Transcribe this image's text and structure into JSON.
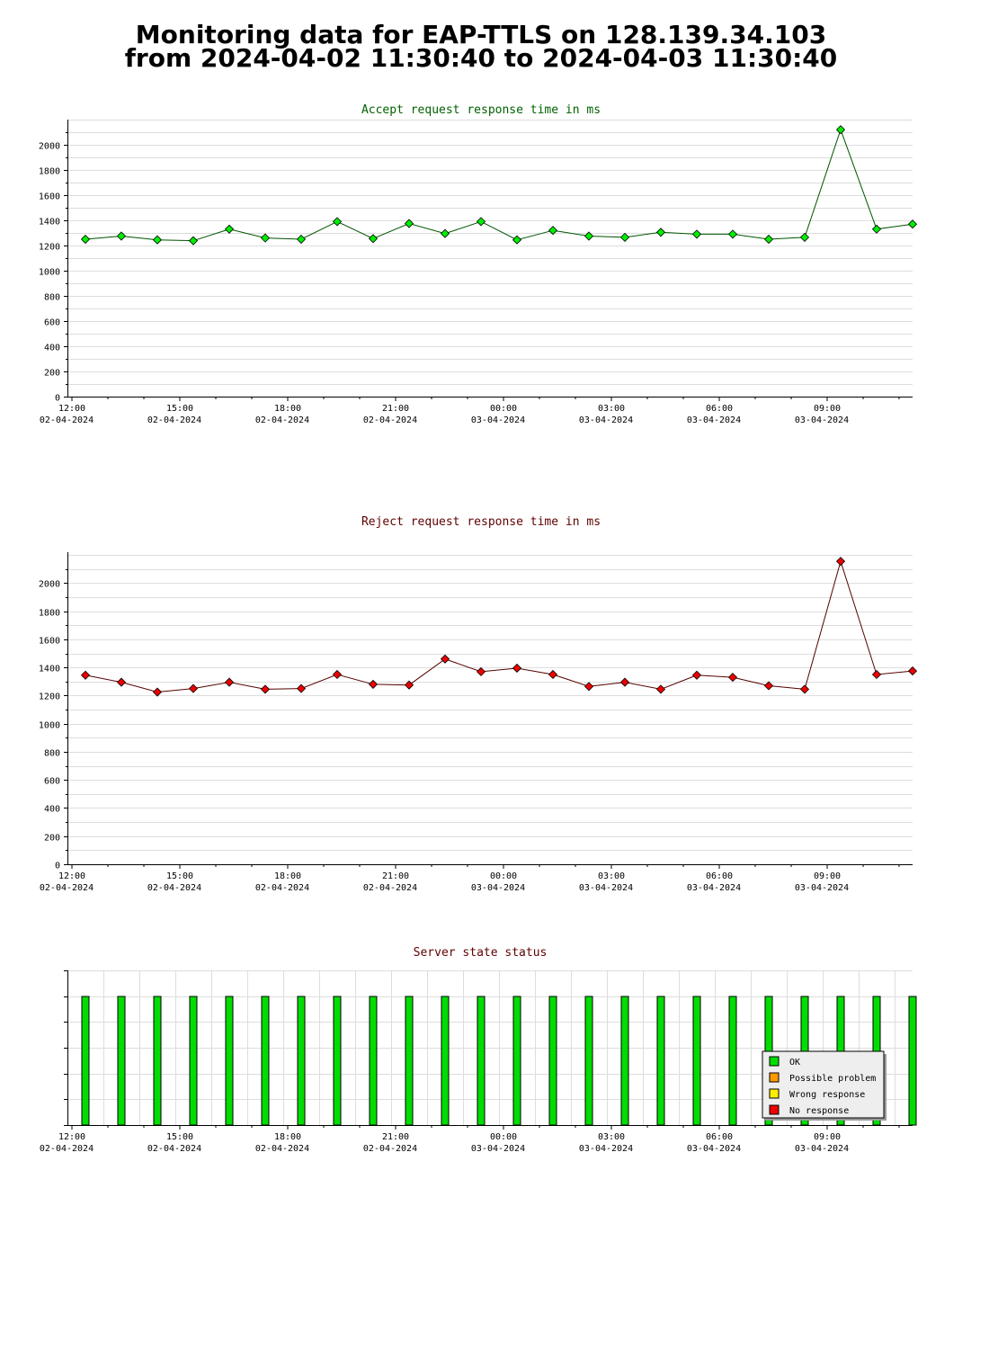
{
  "page_title": {
    "line1": "Monitoring data for EAP-TTLS on 128.139.34.103",
    "line2": "from 2024-04-02 11:30:40 to 2024-04-03 11:30:40"
  },
  "colors": {
    "accept_title": "#006000",
    "reject_title": "#600000",
    "status_title": "#600000",
    "accept_line": "#005500",
    "reject_line": "#550000",
    "accept_marker": "#00ee00",
    "reject_marker": "#ee0000",
    "ok": "#00dd00",
    "possible_problem": "#ff9900",
    "wrong_response": "#ffee00",
    "no_response": "#ee0000",
    "grid": "#dddddd"
  },
  "chart_data": [
    {
      "id": "accept",
      "type": "line",
      "title": "Accept request response time in ms",
      "x": [
        "12:15",
        "13:15",
        "14:15",
        "15:15",
        "16:15",
        "17:15",
        "18:15",
        "19:15",
        "20:15",
        "21:15",
        "22:15",
        "23:15",
        "00:15",
        "01:15",
        "02:15",
        "03:15",
        "04:15",
        "05:15",
        "06:15",
        "07:15",
        "08:15",
        "09:15",
        "10:15",
        "11:15"
      ],
      "values": [
        1250,
        1275,
        1245,
        1238,
        1330,
        1260,
        1250,
        1390,
        1255,
        1375,
        1295,
        1390,
        1245,
        1320,
        1275,
        1265,
        1305,
        1290,
        1290,
        1250,
        1265,
        2120,
        1330,
        1370
      ],
      "ylim": [
        0,
        2200
      ],
      "yticks": [
        "0",
        "200",
        "400",
        "600",
        "800",
        "1000",
        "1200",
        "1400",
        "1600",
        "1800",
        "2000"
      ],
      "xticks": [
        {
          "time": "12:00",
          "date": "02-04-2024"
        },
        {
          "time": "15:00",
          "date": "02-04-2024"
        },
        {
          "time": "18:00",
          "date": "02-04-2024"
        },
        {
          "time": "21:00",
          "date": "02-04-2024"
        },
        {
          "time": "00:00",
          "date": "03-04-2024"
        },
        {
          "time": "03:00",
          "date": "03-04-2024"
        },
        {
          "time": "06:00",
          "date": "03-04-2024"
        },
        {
          "time": "09:00",
          "date": "03-04-2024"
        }
      ],
      "grid": true
    },
    {
      "id": "reject",
      "type": "line",
      "title": "Reject request response time in ms",
      "x": [
        "12:15",
        "13:15",
        "14:15",
        "15:15",
        "16:15",
        "17:15",
        "18:15",
        "19:15",
        "20:15",
        "21:15",
        "22:15",
        "23:15",
        "00:15",
        "01:15",
        "02:15",
        "03:15",
        "04:15",
        "05:15",
        "06:15",
        "07:15",
        "08:15",
        "09:15",
        "10:15",
        "11:15"
      ],
      "values": [
        1345,
        1295,
        1225,
        1250,
        1295,
        1245,
        1250,
        1350,
        1280,
        1275,
        1460,
        1370,
        1395,
        1350,
        1265,
        1295,
        1245,
        1345,
        1330,
        1270,
        1245,
        2155,
        1350,
        1375
      ],
      "ylim": [
        0,
        2220
      ],
      "yticks": [
        "0",
        "200",
        "400",
        "600",
        "800",
        "1000",
        "1200",
        "1400",
        "1600",
        "1800",
        "2000"
      ],
      "xticks": [
        {
          "time": "12:00",
          "date": "02-04-2024"
        },
        {
          "time": "15:00",
          "date": "02-04-2024"
        },
        {
          "time": "18:00",
          "date": "02-04-2024"
        },
        {
          "time": "21:00",
          "date": "02-04-2024"
        },
        {
          "time": "00:00",
          "date": "03-04-2024"
        },
        {
          "time": "03:00",
          "date": "03-04-2024"
        },
        {
          "time": "06:00",
          "date": "03-04-2024"
        },
        {
          "time": "09:00",
          "date": "03-04-2024"
        }
      ],
      "grid": true
    },
    {
      "id": "status",
      "type": "bar",
      "title": "Server state status",
      "x": [
        "12:15",
        "13:15",
        "14:15",
        "15:15",
        "16:15",
        "17:15",
        "18:15",
        "19:15",
        "20:15",
        "21:15",
        "22:15",
        "23:15",
        "00:15",
        "01:15",
        "02:15",
        "03:15",
        "04:15",
        "05:15",
        "06:15",
        "07:15",
        "08:15",
        "09:15",
        "10:15",
        "11:15"
      ],
      "states": [
        "OK",
        "OK",
        "OK",
        "OK",
        "OK",
        "OK",
        "OK",
        "OK",
        "OK",
        "OK",
        "OK",
        "OK",
        "OK",
        "OK",
        "OK",
        "OK",
        "OK",
        "OK",
        "OK",
        "OK",
        "OK",
        "OK",
        "OK",
        "OK"
      ],
      "xticks": [
        {
          "time": "12:00",
          "date": "02-04-2024"
        },
        {
          "time": "15:00",
          "date": "02-04-2024"
        },
        {
          "time": "18:00",
          "date": "02-04-2024"
        },
        {
          "time": "21:00",
          "date": "02-04-2024"
        },
        {
          "time": "00:00",
          "date": "03-04-2024"
        },
        {
          "time": "03:00",
          "date": "03-04-2024"
        },
        {
          "time": "06:00",
          "date": "03-04-2024"
        },
        {
          "time": "09:00",
          "date": "03-04-2024"
        }
      ],
      "legend": {
        "placement": "bottom-right",
        "entries": [
          {
            "label": "OK",
            "color": "#00dd00"
          },
          {
            "label": "Possible problem",
            "color": "#ff9900"
          },
          {
            "label": "Wrong response",
            "color": "#ffee00"
          },
          {
            "label": "No response",
            "color": "#ee0000"
          }
        ]
      },
      "grid": true
    }
  ]
}
